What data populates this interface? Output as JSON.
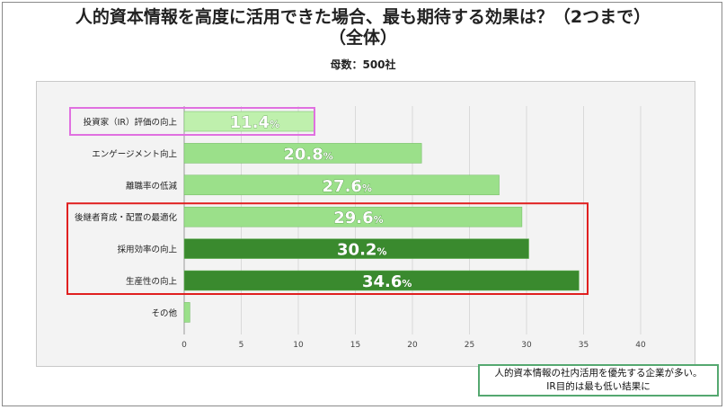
{
  "title_lines": [
    "人的資本情報を高度に活用できた場合、最も期待する効果は？（2つまで）",
    "（全体）"
  ],
  "subtitle": "母数：500社",
  "note_lines": [
    "人的資本情報の社内活用を優先する企業が多い。",
    "IR目的は最も低い結果に"
  ],
  "colors": {
    "light_bar": "#9be08a",
    "lightest_bar": "#bff0ad",
    "dark_bar": "#3a8a2e",
    "pink_box": "#e070e0",
    "red_box": "#e02020"
  },
  "chart_data": {
    "type": "bar",
    "orientation": "horizontal",
    "categories": [
      "投資家（IR）評価の向上",
      "エンゲージメント向上",
      "離職率の低減",
      "後継者育成・配置の最適化",
      "採用効率の向上",
      "生産性の向上",
      "その他"
    ],
    "values": [
      11.4,
      20.8,
      27.6,
      29.6,
      30.2,
      34.6,
      0.5
    ],
    "data_labels": [
      "11.4",
      "20.8",
      "27.6",
      "29.6",
      "30.2",
      "34.6",
      ""
    ],
    "unit": "%",
    "bar_shades": [
      "lightest",
      "light",
      "light",
      "light",
      "dark",
      "dark",
      "light"
    ],
    "xlim": [
      0,
      40
    ],
    "xticks": [
      0,
      5,
      10,
      15,
      20,
      25,
      30,
      35,
      40
    ],
    "grid": true,
    "highlight_groups": [
      {
        "color": "pink",
        "categories": [
          0
        ]
      },
      {
        "color": "red",
        "categories": [
          3,
          4,
          5
        ]
      }
    ]
  }
}
